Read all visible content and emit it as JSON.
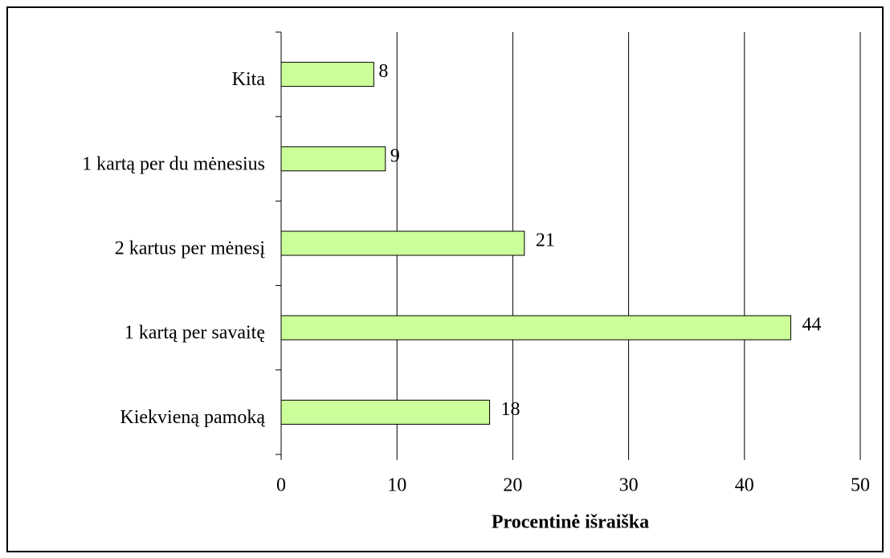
{
  "chart_data": {
    "type": "bar",
    "orientation": "horizontal",
    "categories": [
      "Kiekvieną pamoką",
      "1 kartą per savaitę",
      "2 kartus per mėnesį",
      "1 kartą per du mėnesius",
      "Kita"
    ],
    "values": [
      18,
      44,
      21,
      9,
      8
    ],
    "color": "#ccff99",
    "xlabel": "Procentinė išraiška",
    "xlim": [
      0,
      50
    ],
    "xticks": [
      0,
      10,
      20,
      30,
      40,
      50
    ],
    "grid": true
  }
}
